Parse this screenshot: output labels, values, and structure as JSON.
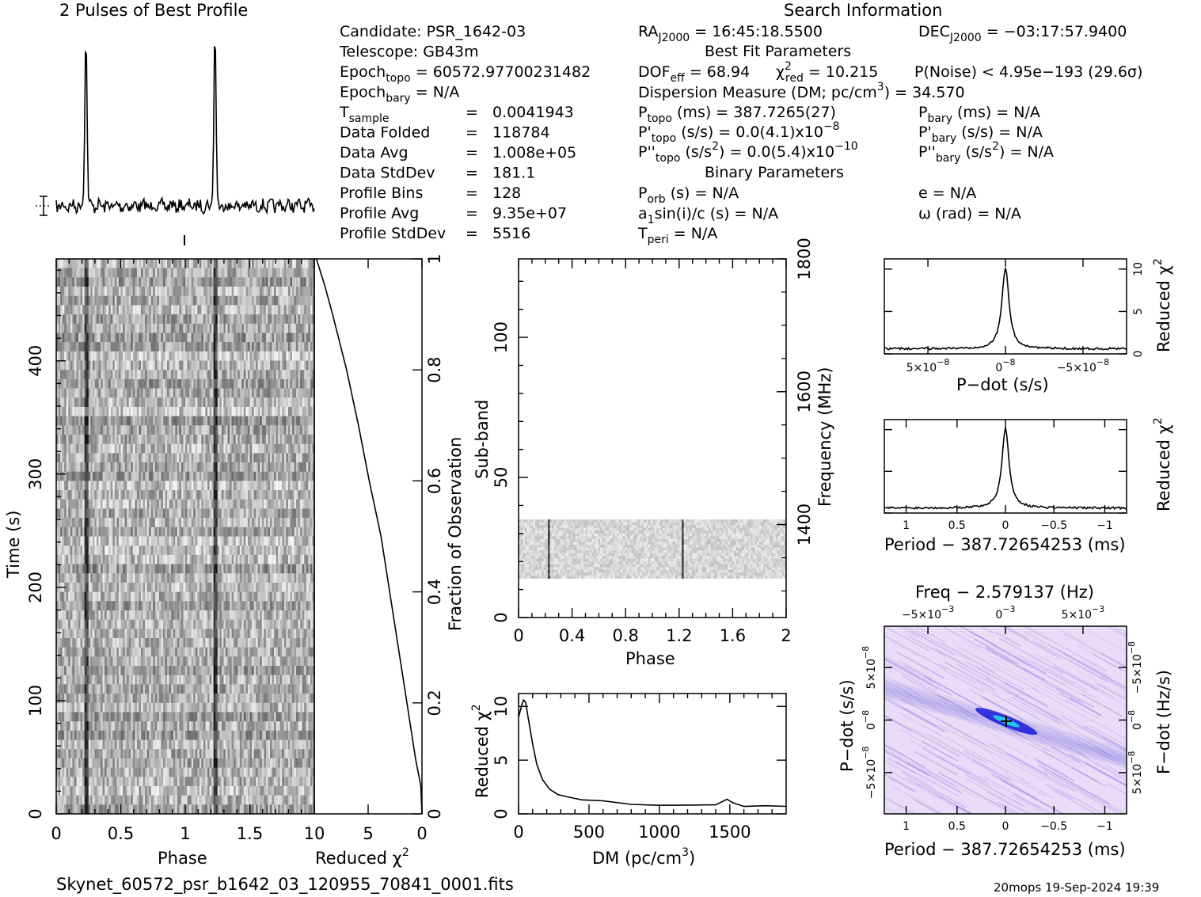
{
  "profile_title": "2 Pulses of Best Profile",
  "search_title": "Search Information",
  "footer_file": "Skynet_60572_psr_b1642_03_120955_70841_0001.fits",
  "footer_stamp": "20mops 19-Sep-2024 19:39",
  "info_left": [
    {
      "label": "Candidate:  PSR_1642-03",
      "value": ""
    },
    {
      "label": "Telescope:  GB43m",
      "value": ""
    },
    {
      "label": "Epoch",
      "sub": "topo",
      "value": " = 60572.97700231482"
    },
    {
      "label": "Epoch",
      "sub": "bary",
      "value": " = N/A"
    },
    {
      "label": "T",
      "sub": "sample",
      "eq": "=",
      "value": "0.0041943"
    },
    {
      "label": "Data Folded",
      "eq": "=",
      "value": "118784"
    },
    {
      "label": "Data Avg",
      "eq": "=",
      "value": "1.008e+05"
    },
    {
      "label": "Data StdDev",
      "eq": "=",
      "value": "181.1"
    },
    {
      "label": "Profile Bins",
      "eq": "=",
      "value": "128"
    },
    {
      "label": "Profile Avg",
      "eq": "=",
      "value": "9.35e+07"
    },
    {
      "label": "Profile StdDev",
      "eq": "=",
      "value": "5516"
    }
  ],
  "info_right": {
    "ra": "RA",
    "ra_sub": "J2000",
    "ra_val": " = 16:45:18.5500",
    "dec": "DEC",
    "dec_sub": "J2000",
    "dec_val": " = −03:17:57.9400",
    "best_fit": "Best Fit Parameters",
    "dof": "DOF",
    "dof_sub": "eff",
    "dof_val": " = 68.94",
    "chi_label": "χ",
    "chi_sup": "2",
    "chi_sub": "red",
    "chi_val": " = 10.215",
    "pnoise": "P(Noise) < 4.95e−193   (29.6σ)",
    "dm_line": "Dispersion Measure (DM; pc/cm",
    "dm_sup": "3",
    "dm_val": ") = 34.570",
    "ptopo": "P",
    "ptopo_sub": "topo",
    "ptopo_val": " (ms) =  387.7265(27)",
    "pbary": "P",
    "pbary_sub": "bary",
    "pbary_val": " (ms) = N/A",
    "pdtopo": "P'",
    "pdtopo_sub": "topo",
    "pdtopo_val": " (s/s) = 0.0(4.1)x10",
    "pdtopo_exp": "−8",
    "pdbary": "P'",
    "pdbary_sub": "bary",
    "pdbary_val": " (s/s) = N/A",
    "pddtopo": "P''",
    "pddtopo_sub": "topo",
    "pddtopo_val": " (s/s",
    "pddtopo_sup": "2",
    "pddtopo_val2": ") = 0.0(5.4)x10",
    "pddtopo_exp": "−10",
    "pddbary": "P''",
    "pddbary_sub": "bary",
    "pddbary_val": " (s/s",
    "pddbary_sup": "2",
    "pddbary_val2": ") = N/A",
    "binary": "Binary Parameters",
    "porb": "P",
    "porb_sub": "orb",
    "porb_val": " (s) = N/A",
    "ecc": "e = N/A",
    "a1": "a",
    "a1_sub": "1",
    "a1_val": "sin(i)/c (s) = N/A",
    "omega": "ω (rad) = N/A",
    "tperi": "T",
    "tperi_sub": "peri",
    "tperi_val": " = N/A"
  },
  "colors": {
    "ink": "#000000",
    "accent": "#2020e0",
    "bg": "#ffffff"
  },
  "chart_data": [
    {
      "type": "line",
      "name": "profile",
      "title": "2 Pulses of Best Profile",
      "peaks_phase": [
        0.23,
        1.23
      ],
      "peak_height": 1.0
    },
    {
      "type": "heatmap",
      "name": "time-phase",
      "xlabel": "Phase",
      "ylabel": "Time (s)",
      "x_ticks": [
        "0",
        "0.5",
        "1",
        "1.5"
      ],
      "y_ticks": [
        "0",
        "100",
        "200",
        "300",
        "400"
      ],
      "xlim": [
        0,
        2
      ],
      "ylim": [
        0,
        490
      ],
      "pulse_phase": [
        0.23,
        1.23
      ]
    },
    {
      "type": "line",
      "name": "reduced-chi2-vs-time",
      "xlabel": "Reduced χ",
      "xlabel_sup": "2",
      "ylabel": "Fraction of Observation",
      "x_ticks": [
        "10",
        "5",
        "0"
      ],
      "y_ticks": [
        "0",
        "0.2",
        "0.4",
        "0.6",
        "0.8",
        "1"
      ],
      "xlim": [
        10,
        0
      ],
      "ylim": [
        0,
        1
      ],
      "fraction": [
        0,
        0.05,
        0.1,
        0.2,
        0.3,
        0.4,
        0.5,
        0.6,
        0.7,
        0.8,
        0.9,
        0.95,
        1.0
      ],
      "chi2": [
        0.0,
        0.1,
        0.6,
        1.4,
        2.2,
        3.0,
        3.8,
        4.9,
        5.9,
        7.0,
        8.3,
        9.0,
        9.8
      ]
    },
    {
      "type": "heatmap",
      "name": "subband-phase",
      "xlabel": "Phase",
      "ylabel": "Sub-band",
      "y2label": "Frequency (MHz)",
      "x_ticks": [
        "0",
        "0.4",
        "0.8",
        "1.2",
        "1.6",
        "2"
      ],
      "y_ticks": [
        "0",
        "50",
        "100"
      ],
      "y2_ticks": [
        "1400",
        "1600",
        "1800"
      ],
      "xlim": [
        0,
        2
      ],
      "ylim": [
        0,
        128
      ],
      "band_range": [
        14,
        35
      ],
      "pulse_phase": [
        0.22,
        1.22
      ]
    },
    {
      "type": "line",
      "name": "dm-curve",
      "xlabel": "DM (pc/cm",
      "xlabel_sup": "3",
      "xlabel_end": ")",
      "ylabel": "Reduced χ",
      "ylabel_sup": "2",
      "x_ticks": [
        "0",
        "500",
        "1000",
        "1500"
      ],
      "y_ticks": [
        "0",
        "5",
        "10"
      ],
      "xlim": [
        0,
        1900
      ],
      "ylim": [
        0,
        11.2
      ],
      "x": [
        0,
        20,
        35,
        50,
        70,
        100,
        130,
        170,
        220,
        280,
        350,
        450,
        600,
        800,
        1000,
        1200,
        1400,
        1480,
        1520,
        1600,
        1750,
        1900
      ],
      "y": [
        9.0,
        10.0,
        10.6,
        10.4,
        8.8,
        6.5,
        4.6,
        3.2,
        2.3,
        1.8,
        1.5,
        1.35,
        1.15,
        0.95,
        0.8,
        0.85,
        0.9,
        1.3,
        1.1,
        0.75,
        0.7,
        0.75
      ]
    },
    {
      "type": "line",
      "name": "pdot-curve",
      "xlabel": "P−dot (s/s)",
      "ylabel": "Reduced χ",
      "ylabel_sup": "2",
      "x_ticks": [
        "5×10",
        "0",
        "−5×10"
      ],
      "x_tick_exp": "−8",
      "y_ticks": [
        "0",
        "5",
        "10"
      ],
      "peak_x": 0,
      "peak_y": 10.2,
      "baseline": 0.6
    },
    {
      "type": "line",
      "name": "period-curve",
      "xlabel": "Period − 387.72654253 (ms)",
      "ylabel": "Reduced χ",
      "ylabel_sup": "2",
      "x_ticks": [
        "1",
        "0.5",
        "0",
        "−0.5",
        "−1"
      ],
      "y_ticks": [
        "0",
        "5",
        "10"
      ],
      "peak_x": 0,
      "peak_y": 10.2,
      "baseline": 0.6
    },
    {
      "type": "heatmap",
      "name": "period-pdot",
      "title": "Freq − 2.579137 (Hz)",
      "xlabel": "Period − 387.72654253 (ms)",
      "ylabel": "P−dot (s/s)",
      "y2label": "F−dot (Hz/s)",
      "x_ticks": [
        "1",
        "0.5",
        "0",
        "−0.5",
        "−1"
      ],
      "x2_ticks": [
        "−5×10",
        "0",
        "5×10"
      ],
      "x2_tick_exp": "−3",
      "y_ticks": [
        "5×10",
        "0",
        "−5×10"
      ],
      "y_tick_exp": "−8",
      "y2_ticks": [
        "−5×10",
        "0",
        "5×10"
      ],
      "y2_tick_exp": "−8",
      "best_x": 0,
      "best_y": 0
    }
  ]
}
